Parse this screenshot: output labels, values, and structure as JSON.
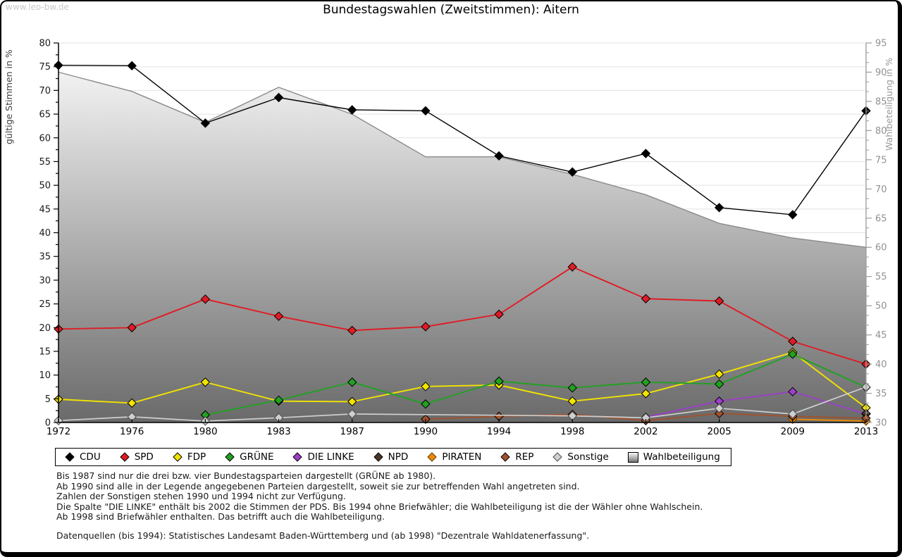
{
  "watermark": "www.leo-bw.de",
  "title": "Bundestagswahlen (Zweitstimmen): Aitern",
  "axes": {
    "left_label": "gültige Stimmen in %",
    "right_label": "Wahlbeteiligung in %",
    "left_min": 0,
    "left_max": 80,
    "left_step": 5,
    "right_min": 30,
    "right_max": 95,
    "right_step": 5,
    "grid": true
  },
  "chart_data": {
    "type": "line",
    "title": "Bundestagswahlen (Zweitstimmen): Aitern",
    "x": [
      1972,
      1976,
      1980,
      1983,
      1987,
      1990,
      1994,
      1998,
      2002,
      2005,
      2009,
      2013
    ],
    "xlabel": "",
    "ylabel_left": "gültige Stimmen in %",
    "ylabel_right": "Wahlbeteiligung in %",
    "ylim_left": [
      0,
      80
    ],
    "ylim_right": [
      30,
      95
    ],
    "legend_position": "bottom",
    "series": [
      {
        "name": "CDU",
        "axis": "left",
        "color": "#000000",
        "stroke": "#000000",
        "width": 1.4,
        "values": [
          75.3,
          75.2,
          63.1,
          68.5,
          65.9,
          65.7,
          56.2,
          52.8,
          56.7,
          45.3,
          43.8,
          65.7
        ]
      },
      {
        "name": "SPD",
        "axis": "left",
        "color": "#e01b24",
        "stroke": "#000000",
        "width": 1.9,
        "values": [
          19.7,
          20.0,
          26.0,
          22.4,
          19.4,
          20.2,
          22.8,
          32.8,
          26.1,
          25.6,
          17.1,
          12.3
        ]
      },
      {
        "name": "FDP",
        "axis": "left",
        "color": "#f2e400",
        "stroke": "#000000",
        "width": 1.9,
        "values": [
          4.9,
          4.1,
          8.5,
          4.5,
          4.4,
          7.6,
          7.9,
          4.5,
          6.1,
          10.2,
          14.8,
          3.1
        ]
      },
      {
        "name": "GRÜNE",
        "axis": "left",
        "color": "#21a121",
        "stroke": "#000000",
        "width": 1.9,
        "values": [
          null,
          null,
          1.6,
          4.7,
          8.5,
          3.9,
          8.7,
          7.3,
          8.5,
          8.1,
          14.4,
          7.4
        ]
      },
      {
        "name": "DIE LINKE",
        "axis": "left",
        "color": "#9c3fc9",
        "stroke": "#000000",
        "width": 1.9,
        "values": [
          null,
          null,
          null,
          null,
          null,
          null,
          null,
          null,
          1.1,
          4.5,
          6.5,
          1.8
        ]
      },
      {
        "name": "NPD",
        "axis": "left",
        "color": "#4a3728",
        "stroke": "#000000",
        "width": 1.9,
        "values": [
          null,
          null,
          null,
          null,
          null,
          null,
          null,
          null,
          null,
          null,
          null,
          1.9
        ]
      },
      {
        "name": "PIRATEN",
        "axis": "left",
        "color": "#ef8a00",
        "stroke": "#5a3a00",
        "width": 1.9,
        "values": [
          null,
          null,
          null,
          null,
          null,
          null,
          null,
          null,
          null,
          null,
          0.7,
          0.3
        ]
      },
      {
        "name": "REP",
        "axis": "left",
        "color": "#a0522d",
        "stroke": "#000000",
        "width": 1.9,
        "values": [
          null,
          null,
          null,
          null,
          null,
          0.7,
          1.3,
          1.7,
          0.4,
          1.9,
          1.3,
          0.9
        ]
      },
      {
        "name": "Sonstige",
        "axis": "left",
        "color": "#cfcfcf",
        "stroke": "#4d4d4d",
        "width": 1.7,
        "values": [
          0.4,
          1.2,
          0.3,
          1.0,
          1.8,
          null,
          null,
          1.4,
          1.0,
          3.0,
          1.8,
          7.5
        ]
      },
      {
        "name": "Wahlbeteiligung",
        "axis": "right",
        "color": "#8a8a8a",
        "width": 1.4,
        "style": "area",
        "values": [
          90.0,
          86.7,
          81.4,
          87.4,
          82.8,
          75.5,
          75.5,
          72.5,
          69.0,
          64.1,
          61.6,
          60.0
        ]
      }
    ]
  },
  "footnotes": [
    "Bis 1987 sind nur die drei bzw. vier Bundestagsparteien dargestellt (GRÜNE ab 1980).",
    "Ab 1990 sind alle in der Legende angegebenen Parteien dargestellt, soweit sie zur betreffenden Wahl angetreten sind.",
    "Zahlen der Sonstigen stehen 1990 und 1994 nicht zur Verfügung.",
    "Die Spalte \"DIE LINKE\" enthält bis 2002 die Stimmen der PDS. Bis 1994 ohne Briefwähler; die Wahlbeteiligung ist die der Wähler ohne Wahlschein.",
    "Ab 1998 sind Briefwähler enthalten. Das betrifft auch die Wahlbeteiligung."
  ],
  "source": "Datenquellen (bis 1994): Statistisches Landesamt Baden-Württemberg und (ab 1998) \"Dezentrale Wahldatenerfassung\"."
}
